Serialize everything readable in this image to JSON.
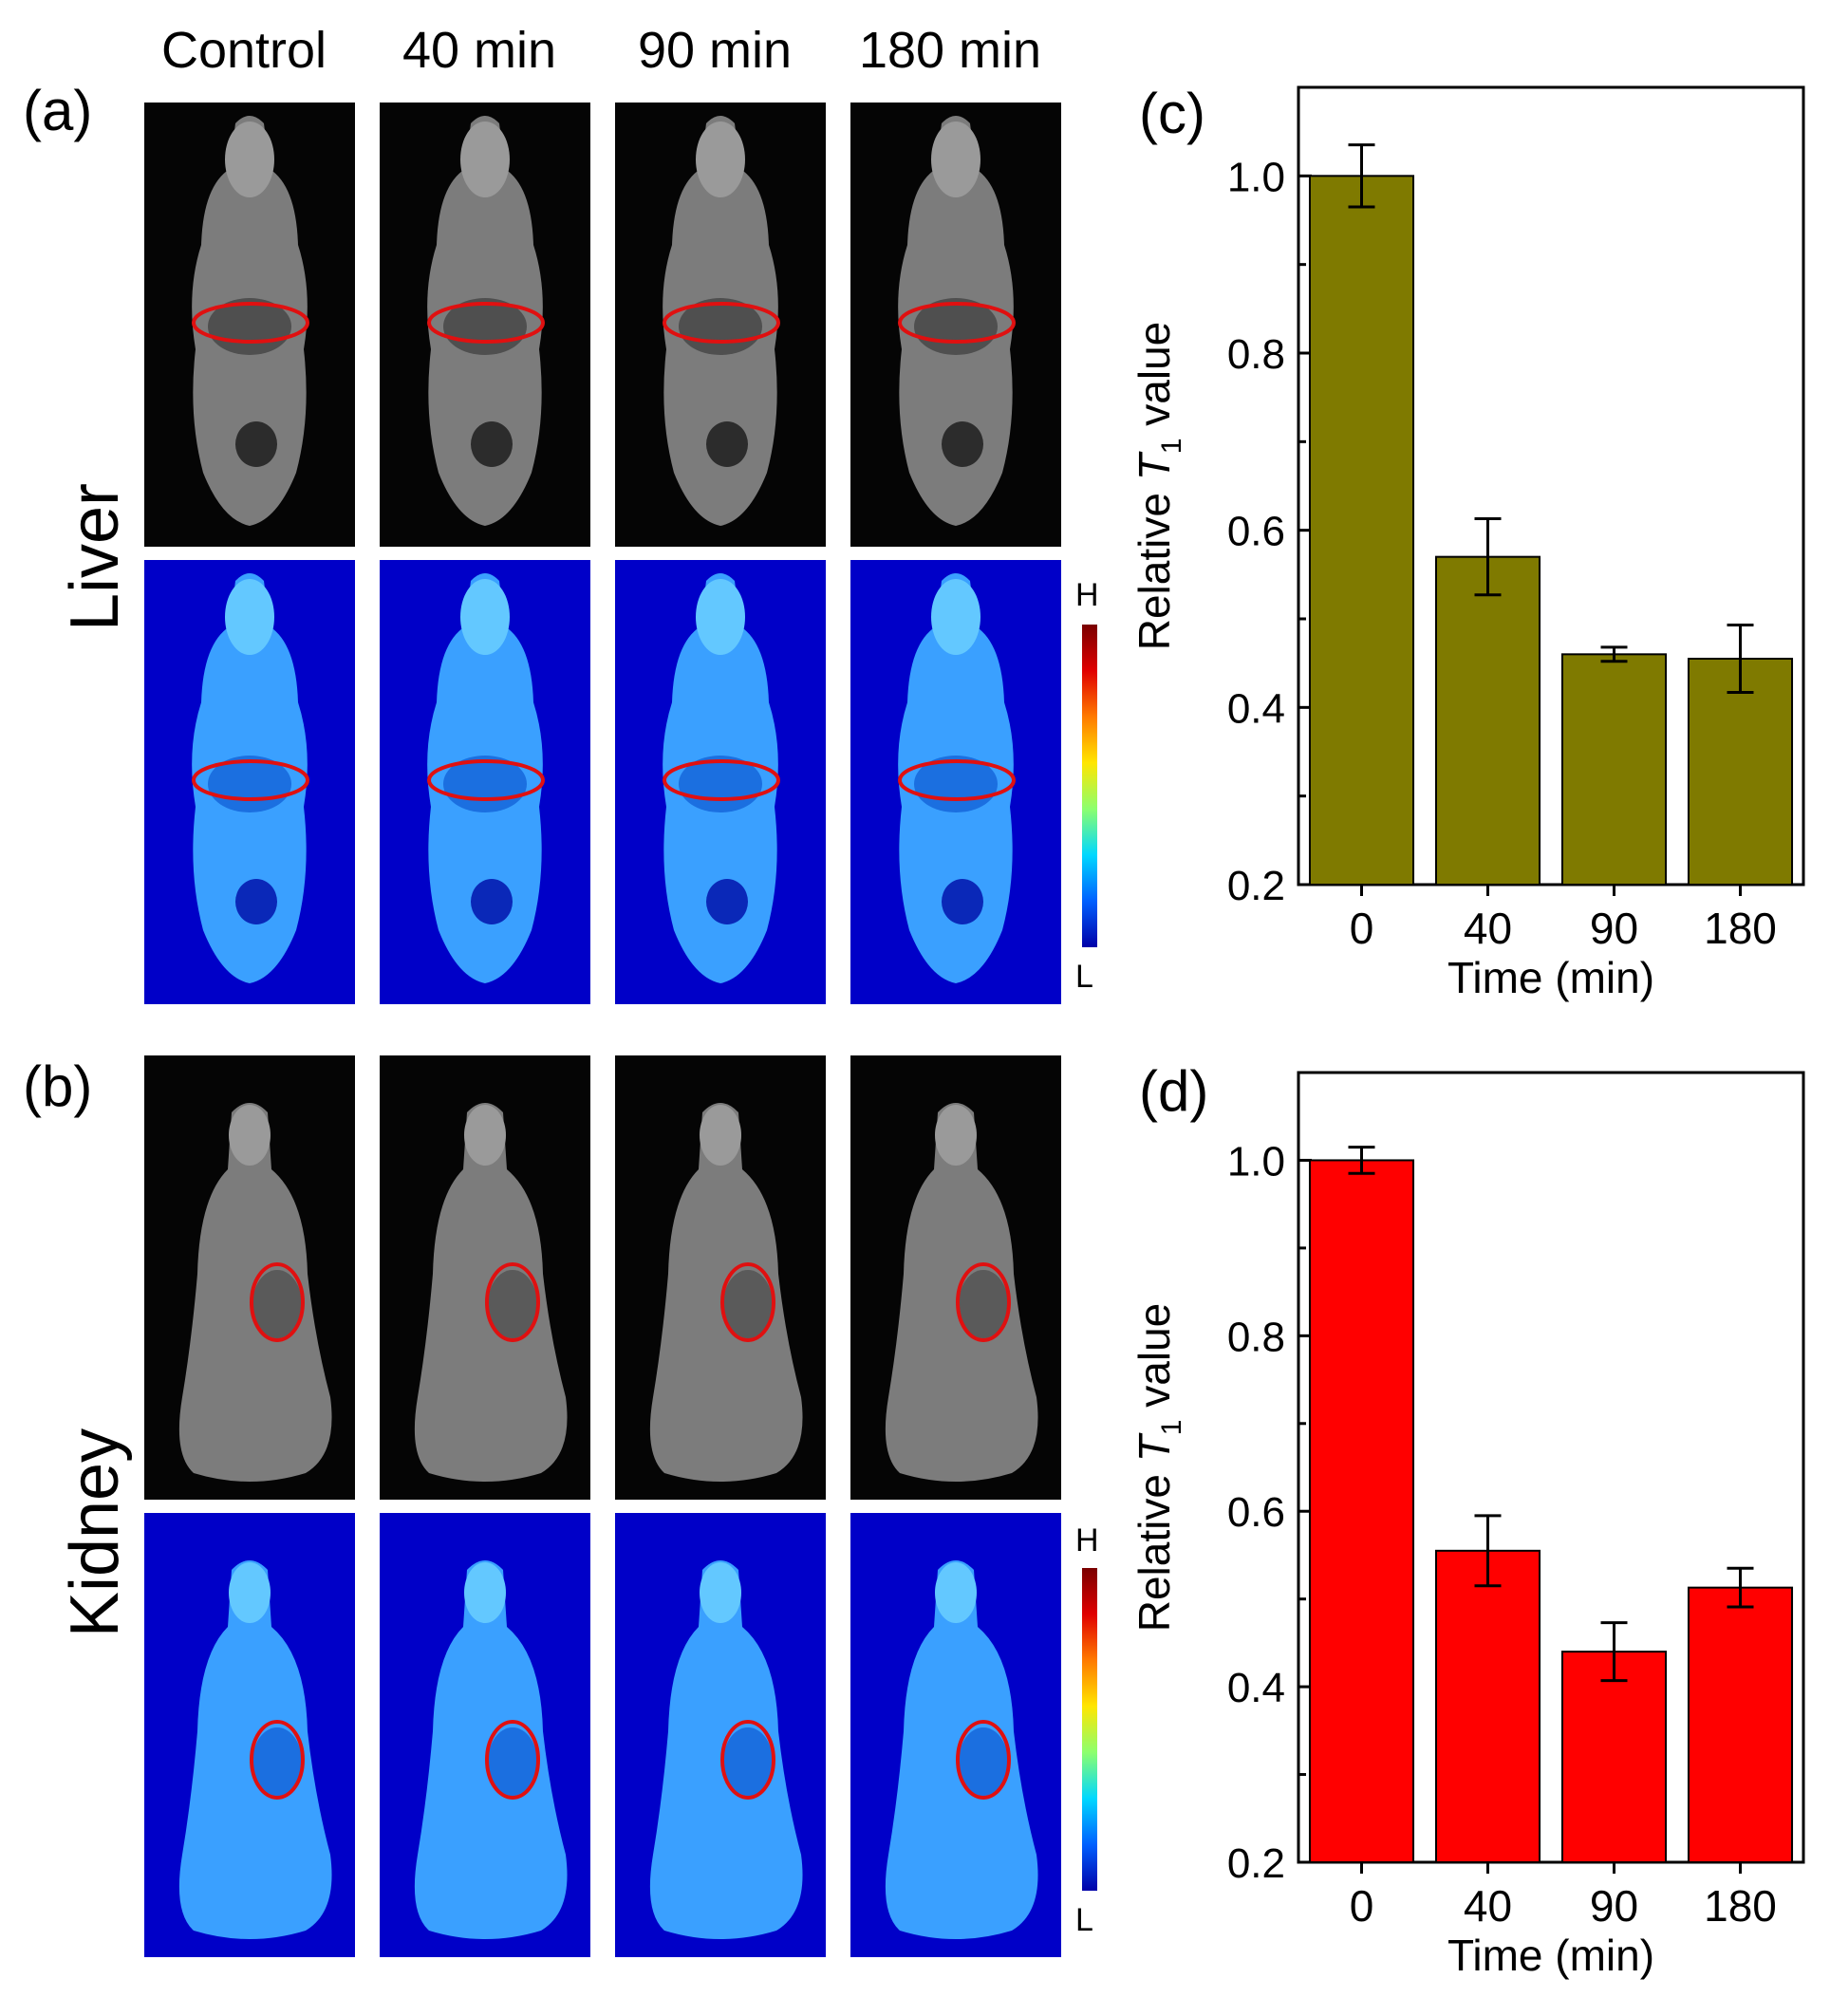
{
  "column_labels": [
    "Control",
    "40 min",
    "90 min",
    "180 min"
  ],
  "row_labels": {
    "liver": "Liver",
    "kidney": "Kidney"
  },
  "panel_tags": {
    "a": "(a)",
    "b": "(b)"
  },
  "colorbar": {
    "high": "H",
    "low": "L"
  },
  "colors": {
    "liver_bar": "#7f7a00",
    "kidney_bar": "#ff0000",
    "roi_circle": "#e01010",
    "map_background": "#0000c8"
  },
  "chart_data": [
    {
      "type": "bar",
      "panel": "(c)",
      "categories": [
        "0",
        "40",
        "90",
        "180"
      ],
      "values": [
        1.0,
        0.57,
        0.46,
        0.455
      ],
      "errors": [
        0.035,
        0.043,
        0.008,
        0.038
      ],
      "xlabel": "Time (min)",
      "ylabel_prefix": "Relative ",
      "ylabel_symbol": "T",
      "ylabel_subscript": "1",
      "ylabel_suffix": " value",
      "ylim": [
        0.2,
        1.1
      ],
      "yticks": [
        "0.2",
        "0.4",
        "0.6",
        "0.8",
        "1.0"
      ],
      "color": "#7f7a00"
    },
    {
      "type": "bar",
      "panel": "(d)",
      "categories": [
        "0",
        "40",
        "90",
        "180"
      ],
      "values": [
        1.0,
        0.555,
        0.44,
        0.513
      ],
      "errors": [
        0.015,
        0.04,
        0.033,
        0.022
      ],
      "xlabel": "Time (min)",
      "ylabel_prefix": "Relative ",
      "ylabel_symbol": "T",
      "ylabel_subscript": "1",
      "ylabel_suffix": " value",
      "ylim": [
        0.2,
        1.1
      ],
      "yticks": [
        "0.2",
        "0.4",
        "0.6",
        "0.8",
        "1.0"
      ],
      "color": "#ff0000"
    }
  ]
}
